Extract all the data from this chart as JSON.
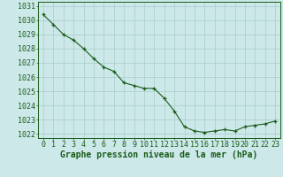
{
  "x": [
    0,
    1,
    2,
    3,
    4,
    5,
    6,
    7,
    8,
    9,
    10,
    11,
    12,
    13,
    14,
    15,
    16,
    17,
    18,
    19,
    20,
    21,
    22,
    23
  ],
  "y": [
    1030.4,
    1029.7,
    1029.0,
    1028.6,
    1028.0,
    1027.3,
    1026.7,
    1026.4,
    1025.6,
    1025.4,
    1025.2,
    1025.2,
    1024.5,
    1023.6,
    1022.5,
    1022.2,
    1022.1,
    1022.2,
    1022.3,
    1022.2,
    1022.5,
    1022.6,
    1022.7,
    1022.9
  ],
  "ylim": [
    1021.7,
    1031.3
  ],
  "xlim": [
    -0.5,
    23.5
  ],
  "yticks": [
    1022,
    1023,
    1024,
    1025,
    1026,
    1027,
    1028,
    1029,
    1030,
    1031
  ],
  "xticks": [
    0,
    1,
    2,
    3,
    4,
    5,
    6,
    7,
    8,
    9,
    10,
    11,
    12,
    13,
    14,
    15,
    16,
    17,
    18,
    19,
    20,
    21,
    22,
    23
  ],
  "xlabel": "Graphe pression niveau de la mer (hPa)",
  "line_color": "#1a5c1a",
  "marker_color": "#1a5c1a",
  "bg_color": "#cce8e8",
  "grid_color": "#aacccc",
  "axis_color": "#1a5c1a",
  "tick_label_color": "#1a5c1a",
  "xlabel_color": "#1a5c1a",
  "xlabel_fontsize": 7.0,
  "tick_fontsize": 6.0,
  "xlabel_fontweight": "bold"
}
